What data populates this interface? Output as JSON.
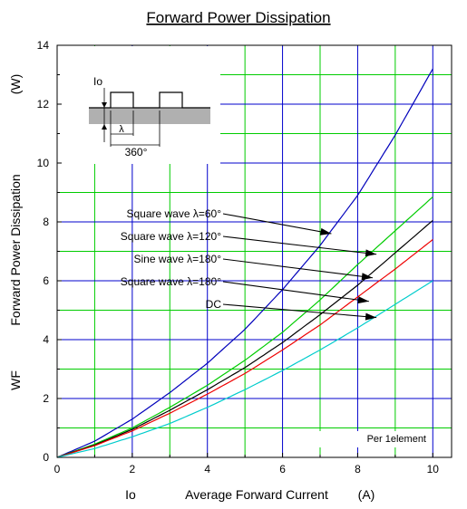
{
  "chart_data": {
    "type": "line",
    "title": "Forward Power Dissipation",
    "xlabel_symbol": "Io",
    "xlabel": "Average Forward Current",
    "xunit": "(A)",
    "ylabel_symbol": "WF",
    "ylabel": "Forward Power Dissipation",
    "yunit": "(W)",
    "xlim": [
      0,
      10.5
    ],
    "ylim": [
      0,
      14
    ],
    "x_ticks": [
      0,
      2,
      4,
      6,
      8,
      10
    ],
    "y_ticks": [
      0,
      2,
      4,
      6,
      8,
      10,
      12,
      14
    ],
    "grid": true,
    "note": "Per 1element",
    "colors": {
      "major_grid": "#0000cc",
      "minor_grid": "#00cc00",
      "inset_fill": "#b0b0b0"
    },
    "series": [
      {
        "name": "Square wave λ=60°",
        "color": "#0000bb",
        "x": [
          0,
          1,
          2,
          3,
          4,
          5,
          6,
          7,
          8,
          9,
          10
        ],
        "y": [
          0,
          0.55,
          1.3,
          2.2,
          3.2,
          4.35,
          5.7,
          7.2,
          8.9,
          10.95,
          13.2
        ]
      },
      {
        "name": "Square wave λ=120°",
        "color": "#00cc00",
        "x": [
          0,
          1,
          2,
          3,
          4,
          5,
          6,
          7,
          8,
          9,
          10
        ],
        "y": [
          0,
          0.45,
          1.0,
          1.7,
          2.45,
          3.3,
          4.25,
          5.35,
          6.55,
          7.7,
          8.85
        ]
      },
      {
        "name": "Sine wave λ=180°",
        "color": "#000000",
        "x": [
          0,
          1,
          2,
          3,
          4,
          5,
          6,
          7,
          8,
          9,
          10
        ],
        "y": [
          0,
          0.42,
          0.95,
          1.6,
          2.3,
          3.05,
          3.9,
          4.85,
          5.85,
          6.95,
          8.05
        ]
      },
      {
        "name": "Square wave λ=180°",
        "color": "#ee0000",
        "x": [
          0,
          1,
          2,
          3,
          4,
          5,
          6,
          7,
          8,
          9,
          10
        ],
        "y": [
          0,
          0.4,
          0.9,
          1.5,
          2.15,
          2.85,
          3.65,
          4.5,
          5.45,
          6.4,
          7.4
        ]
      },
      {
        "name": "DC",
        "color": "#00cccc",
        "x": [
          0,
          1,
          2,
          3,
          4,
          5,
          6,
          7,
          8,
          9,
          10
        ],
        "y": [
          0,
          0.3,
          0.7,
          1.15,
          1.7,
          2.3,
          2.95,
          3.65,
          4.4,
          5.2,
          6.0
        ]
      }
    ],
    "annotations": [
      {
        "series": 0,
        "label": "Square wave λ=60°",
        "target": [
          7.3,
          7.6
        ]
      },
      {
        "series": 1,
        "label": "Square wave λ=120°",
        "target": [
          8.5,
          6.9
        ]
      },
      {
        "series": 2,
        "label": "Sine wave λ=180°",
        "target": [
          8.4,
          6.1
        ]
      },
      {
        "series": 3,
        "label": "Square wave λ=180°",
        "target": [
          8.3,
          5.3
        ]
      },
      {
        "series": 4,
        "label": "DC",
        "target": [
          8.5,
          4.75
        ]
      }
    ],
    "inset": {
      "current_label": "Io",
      "width_label": "λ",
      "period_label": "360°"
    }
  }
}
